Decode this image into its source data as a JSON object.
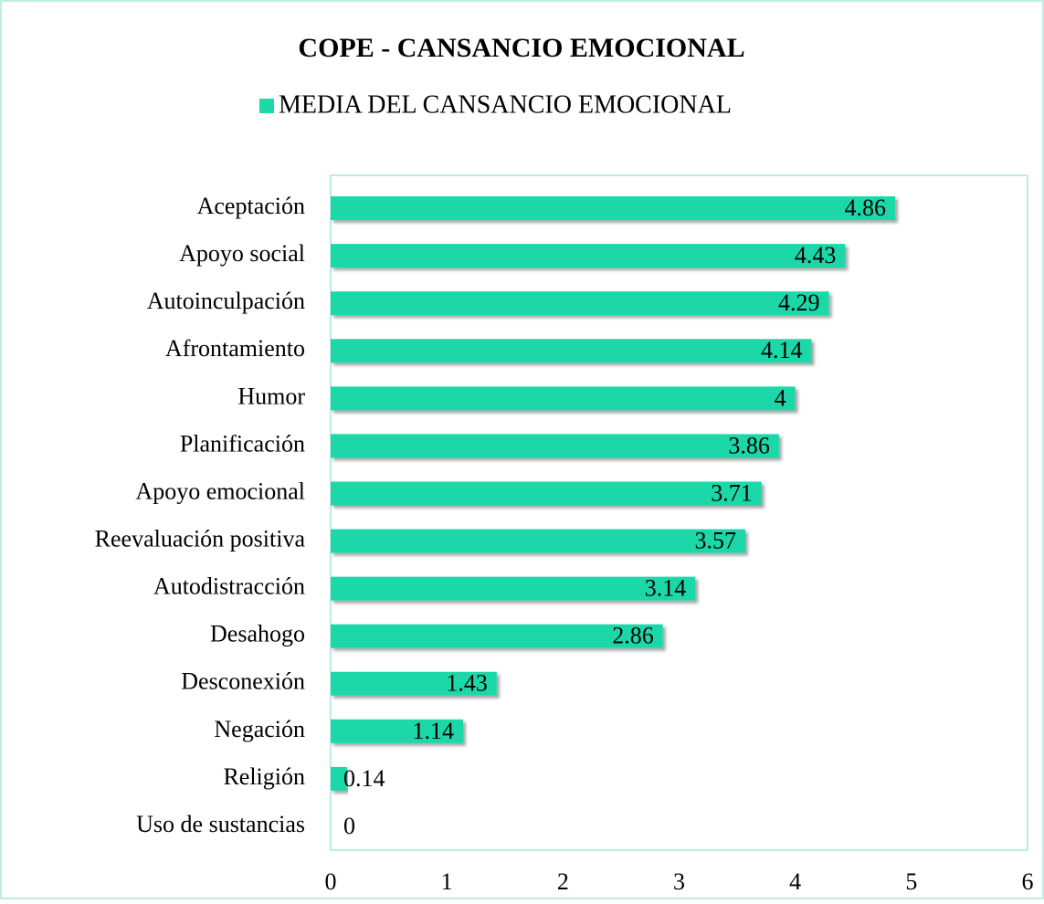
{
  "chart_data": {
    "type": "bar",
    "orientation": "horizontal",
    "title": "COPE - CANSANCIO EMOCIONAL",
    "categories": [
      "Aceptación",
      "Apoyo social",
      "Autoinculpación",
      "Afrontamiento",
      "Humor",
      "Planificación",
      "Apoyo emocional",
      "Reevaluación positiva",
      "Autodistracción",
      "Desahogo",
      "Desconexión",
      "Negación",
      "Religión",
      "Uso de sustancias"
    ],
    "series": [
      {
        "name": "MEDIA DEL CANSANCIO EMOCIONAL",
        "color": "#1fd8a9",
        "values": [
          4.86,
          4.43,
          4.29,
          4.14,
          4,
          3.86,
          3.71,
          3.57,
          3.14,
          2.86,
          1.43,
          1.14,
          0.14,
          0
        ]
      }
    ],
    "xlim": [
      0,
      6
    ],
    "xticks": [
      0,
      1,
      2,
      3,
      4,
      5,
      6
    ],
    "legend": "top",
    "grid": false
  }
}
